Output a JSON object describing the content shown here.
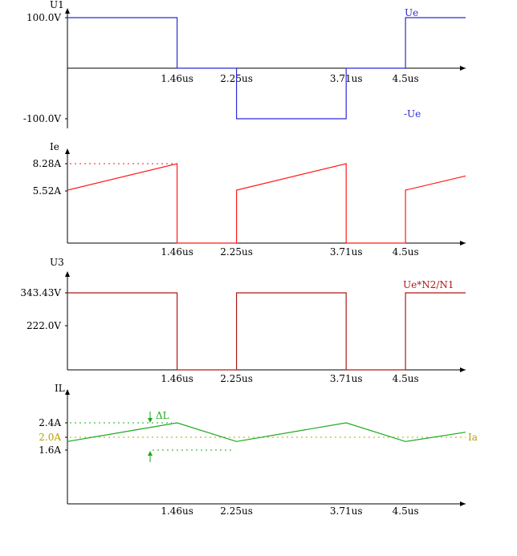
{
  "colors": {
    "axis": "#000000",
    "ue": "#2b2bd8",
    "ie": "#ff1a1a",
    "u3": "#b01818",
    "il": "#1aaa1a",
    "ia": "#b8a000"
  },
  "chart_data": [
    {
      "type": "line",
      "step": true,
      "ylabel": "U1",
      "x_ticks": [
        "1.46us",
        "2.25us",
        "3.71us",
        "4.5us"
      ],
      "y_ticks": [
        "100.0V",
        "-100.0V"
      ],
      "series": [
        {
          "name": "U1",
          "x": [
            0,
            1.46,
            1.46,
            2.25,
            2.25,
            3.71,
            3.71,
            4.5,
            4.5,
            5.3
          ],
          "y": [
            100,
            100,
            0,
            0,
            -100,
            -100,
            0,
            0,
            100,
            100
          ]
        }
      ],
      "annotations": [
        "Ue",
        "-Ue"
      ],
      "ylim": [
        -100,
        100
      ]
    },
    {
      "type": "line",
      "ylabel": "Ie",
      "x_ticks": [
        "1.46us",
        "2.25us",
        "3.71us",
        "4.5us"
      ],
      "y_ticks": [
        "8.28A",
        "5.52A"
      ],
      "series": [
        {
          "name": "Ie",
          "x": [
            0,
            1.46,
            1.46,
            2.25,
            2.25,
            3.71,
            3.71,
            4.5,
            4.5,
            5.3
          ],
          "y": [
            5.52,
            8.28,
            0,
            0,
            5.52,
            8.28,
            0,
            0,
            5.52,
            7.0
          ]
        }
      ],
      "ylim": [
        0,
        8.28
      ]
    },
    {
      "type": "line",
      "step": true,
      "ylabel": "U3",
      "x_ticks": [
        "1.46us",
        "2.25us",
        "3.71us",
        "4.5us"
      ],
      "y_ticks": [
        "343.43V",
        "222.0V"
      ],
      "series": [
        {
          "name": "U3",
          "x": [
            0,
            1.46,
            1.46,
            2.25,
            2.25,
            3.71,
            3.71,
            4.5,
            4.5,
            5.3
          ],
          "y": [
            343.43,
            343.43,
            0,
            0,
            343.43,
            343.43,
            0,
            0,
            343.43,
            343.43
          ]
        }
      ],
      "annotations": [
        "Ue*N2/N1"
      ],
      "ylim": [
        0,
        343.43
      ]
    },
    {
      "type": "line",
      "ylabel": "IL",
      "x_ticks": [
        "1.46us",
        "2.25us",
        "3.71us",
        "4.5us"
      ],
      "y_ticks": [
        "2.4A",
        "2.0A",
        "1.6A"
      ],
      "series": [
        {
          "name": "IL",
          "x": [
            0,
            1.46,
            2.25,
            3.71,
            4.5,
            5.3
          ],
          "y": [
            1.6,
            2.4,
            1.6,
            2.4,
            1.6,
            2.0
          ]
        }
      ],
      "annotations": [
        "ΔL",
        "Ia"
      ],
      "ylim": [
        0,
        2.4
      ]
    }
  ]
}
